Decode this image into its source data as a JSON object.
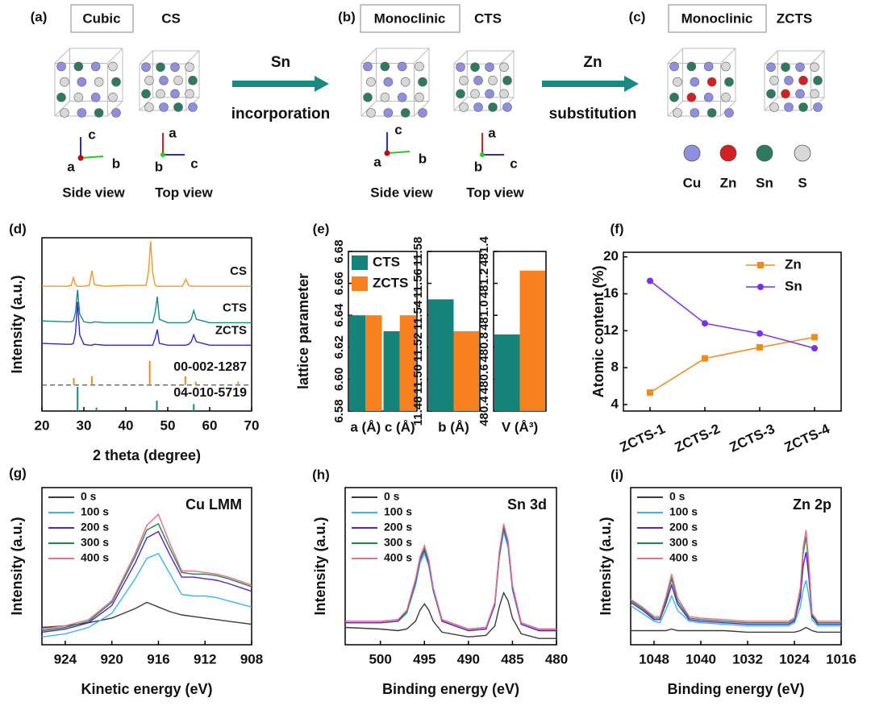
{
  "schematic": {
    "panels": [
      {
        "label": "(a)",
        "phase": "Cubic",
        "compound": "CS",
        "side_axes": [
          "c",
          "a",
          "b"
        ],
        "top_axes": [
          "a",
          "b",
          "c"
        ],
        "views": [
          "Side view",
          "Top view"
        ]
      },
      {
        "label": "(b)",
        "phase": "Monoclinic",
        "compound": "CTS",
        "side_axes": [
          "c",
          "a",
          "b"
        ],
        "top_axes": [
          "a",
          "b",
          "c"
        ],
        "views": [
          "Side view",
          "Top view"
        ]
      },
      {
        "label": "(c)",
        "phase": "Monoclinic",
        "compound": "ZCTS"
      }
    ],
    "arrows": [
      {
        "top": "Sn",
        "bottom": "incorporation"
      },
      {
        "top": "Zn",
        "bottom": "substitution"
      }
    ],
    "legend": [
      {
        "label": "Cu",
        "color": "#8f8fe0"
      },
      {
        "label": "Zn",
        "color": "#d42020"
      },
      {
        "label": "Sn",
        "color": "#2e7a5e"
      },
      {
        "label": "S",
        "color": "#d8d8d8"
      }
    ]
  },
  "chart_data": [
    {
      "type": "line",
      "panel_label": "(d)",
      "xlabel": "2 theta (degree)",
      "ylabel": "Intensity (a.u.)",
      "xlim": [
        20,
        70
      ],
      "xticks": [
        20,
        30,
        40,
        50,
        60,
        70
      ],
      "ylim": [
        0,
        100
      ],
      "x": [
        20,
        26,
        27,
        27.5,
        28,
        28.5,
        29,
        30,
        31.3,
        31.9,
        32.5,
        35,
        40,
        44.8,
        45.4,
        45.9,
        46.4,
        47,
        47.5,
        48,
        50,
        53.5,
        54.3,
        55,
        55.6,
        56.2,
        56.8,
        60,
        65,
        70
      ],
      "series": [
        {
          "name": "CS",
          "color": "#f5962a",
          "values": [
            72,
            72,
            72.5,
            77,
            73,
            72,
            72,
            72,
            72.5,
            81,
            73,
            72,
            72.5,
            72.5,
            80,
            98,
            80,
            72.5,
            72,
            72,
            72,
            72,
            76,
            72.5,
            72,
            72,
            72,
            72,
            72,
            72
          ]
        },
        {
          "name": "CTS",
          "color": "#1a8a80",
          "values": [
            52,
            51.5,
            51.5,
            52,
            57,
            70,
            56,
            51.5,
            51,
            51,
            51.5,
            51,
            51,
            51,
            51,
            51,
            51,
            57,
            66,
            53,
            51,
            51,
            51,
            51.5,
            53,
            58,
            53,
            51,
            51,
            51
          ]
        },
        {
          "name": "ZCTS",
          "color": "#2b2bd0",
          "values": [
            39,
            38.5,
            38.5,
            39,
            45,
            63,
            44,
            38.5,
            38,
            38,
            38.5,
            38,
            38,
            38,
            38,
            38,
            38,
            42,
            47,
            39,
            38,
            38,
            38,
            38.5,
            40,
            44,
            40,
            38,
            38,
            38
          ]
        }
      ],
      "sticks": [
        {
          "name": "00-002-1287",
          "color": "#f08c1e",
          "baseline": 15,
          "x": [
            27.6,
            31.9,
            45.7,
            54.2,
            56.7,
            66.8
          ],
          "values": [
            19,
            20,
            29,
            20,
            17,
            17
          ]
        },
        {
          "name": "04-010-5719",
          "color": "#1a8a80",
          "baseline": 0,
          "x": [
            28.5,
            33,
            47.4,
            56.2
          ],
          "values": [
            14,
            2,
            6,
            4
          ]
        }
      ]
    },
    {
      "type": "bar",
      "panel_label": "(e)",
      "ylabel": "lattice parameter",
      "series": [
        {
          "name": "CTS",
          "color": "#15837a"
        },
        {
          "name": "ZCTS",
          "color": "#f7801f"
        }
      ],
      "panels": [
        {
          "categories": [
            "a (Å)",
            "c (Å)"
          ],
          "ylim": [
            6.58,
            6.68
          ],
          "yticks": [
            6.58,
            {
              "value": 6.6,
              "label": "6.60"
            },
            6.62,
            6.64,
            6.66,
            6.68
          ],
          "values": [
            [
              6.64,
              6.63
            ],
            [
              6.64,
              6.64
            ]
          ]
        },
        {
          "categories": [
            "b (Å)"
          ],
          "ylim": [
            11.48,
            11.58
          ],
          "yticks": [
            11.48,
            {
              "value": 11.5,
              "label": "11.50"
            },
            11.52,
            11.54,
            11.56,
            11.58
          ],
          "values": [
            [
              11.55
            ],
            [
              11.53
            ]
          ]
        },
        {
          "categories": [
            "V (Å³)"
          ],
          "ylim": [
            480.4,
            481.4
          ],
          "yticks": [
            480.4,
            480.6,
            480.8,
            {
              "value": 481,
              "label": "481.0"
            },
            481.2,
            481.4
          ],
          "values": [
            [
              480.88
            ],
            [
              481.28
            ]
          ]
        }
      ]
    },
    {
      "type": "line",
      "panel_label": "(f)",
      "ylabel": "Atomic content (%)",
      "categories": [
        "ZCTS-1",
        "ZCTS-2",
        "ZCTS-3",
        "ZCTS-4"
      ],
      "ylim": [
        3.3,
        20.5
      ],
      "yticks": [
        4,
        8,
        12,
        16,
        20
      ],
      "series": [
        {
          "name": "Zn",
          "color": "#f08c1e",
          "marker": "square",
          "values": [
            5.3,
            9.0,
            10.2,
            11.3
          ]
        },
        {
          "name": "Sn",
          "color": "#7b2ff0",
          "marker": "circle",
          "values": [
            17.4,
            12.8,
            11.7,
            10.1
          ]
        }
      ]
    },
    {
      "type": "line",
      "panel_label": "(g)",
      "annotation": "Cu LMM",
      "xlabel": "Kinetic energy (eV)",
      "ylabel": "Intensity (a.u.)",
      "xlim": [
        926,
        908
      ],
      "xticks": [
        924,
        920,
        916,
        912,
        908
      ],
      "ylim": [
        0,
        100
      ],
      "x": [
        926,
        924,
        922,
        920,
        918,
        917,
        916,
        915,
        914,
        913,
        912,
        911,
        910,
        908
      ],
      "series": [
        {
          "name": "0 s",
          "color": "#3a3a3a",
          "values": [
            11,
            12,
            14,
            17,
            23,
            27,
            24,
            21,
            19,
            18,
            17,
            16,
            15,
            13
          ]
        },
        {
          "name": "100 s",
          "color": "#3ab4f2",
          "values": [
            5,
            7,
            11,
            20,
            42,
            55,
            58,
            45,
            32,
            31,
            31,
            30,
            28,
            24
          ]
        },
        {
          "name": "200 s",
          "color": "#5b1fc4",
          "values": [
            8,
            10,
            14,
            25,
            52,
            68,
            72,
            57,
            43,
            43,
            42,
            41,
            39,
            34
          ]
        },
        {
          "name": "300 s",
          "color": "#1b8a4c",
          "values": [
            9,
            11,
            15,
            27,
            56,
            73,
            77,
            61,
            46,
            45,
            45,
            44,
            42,
            37
          ]
        },
        {
          "name": "400 s",
          "color": "#f06a8a",
          "values": [
            10,
            12,
            16,
            28,
            58,
            76,
            83,
            64,
            47,
            47,
            46,
            45,
            43,
            38
          ]
        }
      ]
    },
    {
      "type": "line",
      "panel_label": "(h)",
      "annotation": "Sn 3d",
      "xlabel": "Binding energy (eV)",
      "ylabel": "Intensity (a.u.)",
      "xlim": [
        504,
        480
      ],
      "xticks": [
        500,
        495,
        490,
        485,
        480
      ],
      "ylim": [
        0,
        100
      ],
      "x": [
        504,
        500,
        498,
        497,
        496,
        495.5,
        495,
        494.5,
        494,
        493,
        490,
        488,
        487,
        486.5,
        486,
        485.5,
        485,
        484,
        482,
        480
      ],
      "series": [
        {
          "name": "0 s",
          "color": "#3a3a3a",
          "values": [
            11,
            10,
            9,
            10,
            15,
            22,
            26,
            22,
            15,
            8,
            5,
            6,
            12,
            24,
            33,
            28,
            17,
            7,
            4,
            4
          ]
        },
        {
          "name": "100 s",
          "color": "#3ab4f2",
          "values": [
            14,
            14,
            15,
            20,
            38,
            52,
            58,
            50,
            34,
            15,
            9,
            10,
            25,
            55,
            72,
            62,
            35,
            13,
            9,
            9
          ]
        },
        {
          "name": "200 s",
          "color": "#5b1fc4",
          "values": [
            14,
            14,
            15,
            21,
            40,
            54,
            60,
            52,
            35,
            15,
            9,
            10,
            26,
            57,
            74,
            64,
            36,
            13,
            9,
            9
          ]
        },
        {
          "name": "300 s",
          "color": "#1b8a4c",
          "values": [
            15,
            15,
            16,
            21,
            41,
            55,
            61,
            53,
            36,
            16,
            10,
            11,
            27,
            58,
            75,
            65,
            37,
            14,
            10,
            10
          ]
        },
        {
          "name": "400 s",
          "color": "#f06a8a",
          "values": [
            15,
            15,
            16,
            22,
            42,
            56,
            63,
            54,
            36,
            16,
            10,
            11,
            27,
            59,
            77,
            66,
            38,
            14,
            10,
            10
          ]
        }
      ]
    },
    {
      "type": "line",
      "panel_label": "(i)",
      "annotation": "Zn 2p",
      "xlabel": "Binding energy (eV)",
      "ylabel": "Intensity (a.u.)",
      "xlim": [
        1052,
        1016
      ],
      "xticks": [
        1048,
        1040,
        1032,
        1024,
        1016
      ],
      "ylim": [
        0,
        100
      ],
      "x": [
        1052,
        1050,
        1048,
        1047,
        1046,
        1045,
        1044,
        1042,
        1040,
        1036,
        1032,
        1028,
        1025,
        1024,
        1023,
        1022.5,
        1022,
        1021.5,
        1021,
        1020,
        1018,
        1016
      ],
      "series": [
        {
          "name": "0 s",
          "color": "#3a3a3a",
          "values": [
            9,
            9,
            9,
            9,
            9,
            10,
            9,
            9,
            9,
            9,
            8,
            8,
            8,
            8,
            9,
            10,
            11,
            10,
            9,
            8,
            8,
            8
          ]
        },
        {
          "name": "100 s",
          "color": "#3ab4f2",
          "values": [
            25,
            20,
            15,
            14,
            22,
            31,
            22,
            15,
            14,
            13,
            12,
            12,
            12,
            14,
            24,
            35,
            41,
            30,
            16,
            12,
            12,
            12
          ]
        },
        {
          "name": "200 s",
          "color": "#5b1fc4",
          "values": [
            27,
            22,
            16,
            16,
            26,
            38,
            26,
            16,
            15,
            14,
            13,
            13,
            13,
            15,
            30,
            50,
            59,
            42,
            18,
            13,
            13,
            13
          ]
        },
        {
          "name": "300 s",
          "color": "#1b8a4c",
          "values": [
            28,
            23,
            17,
            17,
            28,
            42,
            28,
            17,
            16,
            15,
            14,
            14,
            14,
            16,
            34,
            58,
            69,
            48,
            19,
            14,
            14,
            14
          ]
        },
        {
          "name": "400 s",
          "color": "#f06a8a",
          "values": [
            29,
            24,
            18,
            18,
            30,
            45,
            30,
            18,
            17,
            16,
            15,
            15,
            15,
            17,
            36,
            62,
            73,
            51,
            20,
            15,
            15,
            15
          ]
        }
      ]
    }
  ]
}
